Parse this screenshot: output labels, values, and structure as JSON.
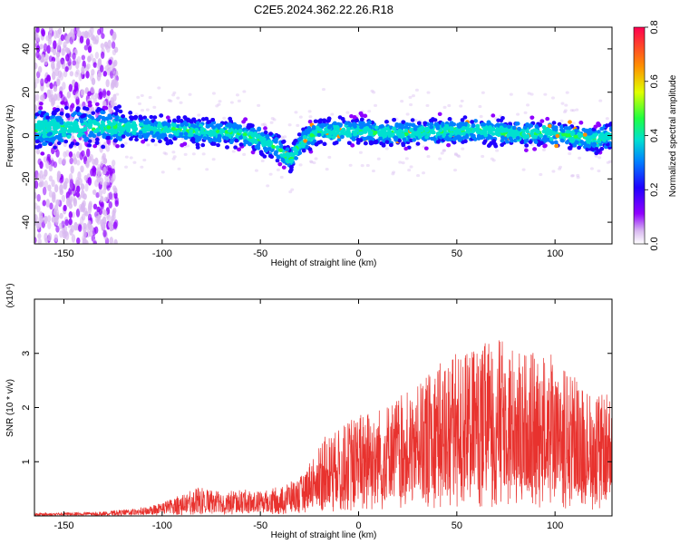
{
  "title": "C2E5.2024.362.22.26.R18",
  "chart_data": [
    {
      "type": "heatmap",
      "xlabel": "Height of straight line (km)",
      "ylabel": "Frequency (Hz)",
      "xlim": [
        -165,
        129
      ],
      "ylim": [
        -50,
        50
      ],
      "x_ticks": [
        -150,
        -100,
        -50,
        0,
        50,
        100
      ],
      "y_ticks": [
        -40,
        -20,
        0,
        20,
        40
      ],
      "colorbar": {
        "label": "Normalized spectral amplitude",
        "range": [
          0.0,
          0.8
        ],
        "ticks": [
          "0.0",
          "0.2",
          "0.4",
          "0.6",
          "0.8"
        ]
      },
      "ridge_center": [
        [
          -160,
          3
        ],
        [
          -140,
          4
        ],
        [
          -120,
          4
        ],
        [
          -100,
          3
        ],
        [
          -80,
          2
        ],
        [
          -60,
          1
        ],
        [
          -50,
          -2
        ],
        [
          -40,
          -6
        ],
        [
          -35,
          -12
        ],
        [
          -30,
          -4
        ],
        [
          -20,
          2
        ],
        [
          0,
          2
        ],
        [
          20,
          1
        ],
        [
          40,
          2
        ],
        [
          60,
          2
        ],
        [
          80,
          1
        ],
        [
          100,
          1
        ],
        [
          120,
          -2
        ],
        [
          129,
          0
        ]
      ]
    },
    {
      "type": "line",
      "xlabel": "Height of straight line (km)",
      "ylabel": "SNR (10 * v/v)",
      "y_multiplier": "(x10⁴)",
      "xlim": [
        -165,
        129
      ],
      "ylim": [
        0,
        4
      ],
      "x_ticks": [
        -150,
        -100,
        -50,
        0,
        50,
        100
      ],
      "y_ticks": [
        1,
        2,
        3
      ],
      "series_color": "#e8322e",
      "envelope": [
        [
          -165,
          0.05
        ],
        [
          -130,
          0.08
        ],
        [
          -110,
          0.15
        ],
        [
          -100,
          0.25
        ],
        [
          -90,
          0.4
        ],
        [
          -80,
          0.55
        ],
        [
          -70,
          0.45
        ],
        [
          -60,
          0.5
        ],
        [
          -50,
          0.45
        ],
        [
          -40,
          0.55
        ],
        [
          -30,
          0.7
        ],
        [
          -25,
          1.0
        ],
        [
          -20,
          1.4
        ],
        [
          -10,
          1.6
        ],
        [
          0,
          1.9
        ],
        [
          10,
          2.0
        ],
        [
          20,
          2.2
        ],
        [
          30,
          2.4
        ],
        [
          40,
          2.8
        ],
        [
          50,
          3.0
        ],
        [
          60,
          3.1
        ],
        [
          70,
          3.3
        ],
        [
          80,
          3.1
        ],
        [
          90,
          3.0
        ],
        [
          100,
          3.0
        ],
        [
          110,
          2.6
        ],
        [
          120,
          2.2
        ],
        [
          129,
          2.3
        ]
      ]
    }
  ]
}
